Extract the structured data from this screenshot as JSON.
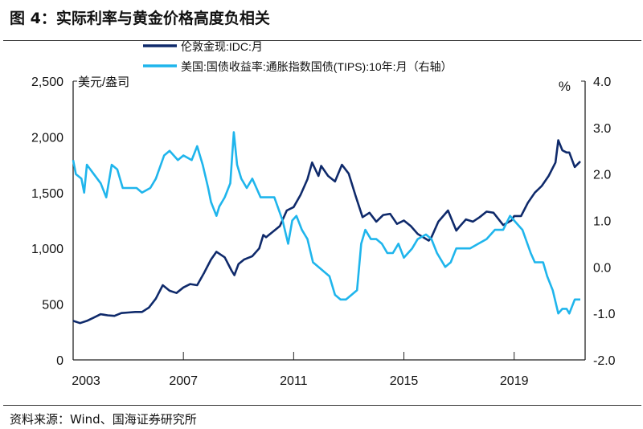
{
  "title": "图 4：实际利率与黄金价格高度负相关",
  "source": "资料来源：Wind、国海证券研究所",
  "chart_data": {
    "type": "line",
    "title": "图 4：实际利率与黄金价格高度负相关",
    "left_axis": {
      "label": "美元/盎司",
      "range": [
        0,
        2500
      ],
      "ticks": [
        "0",
        "500",
        "1,000",
        "1,500",
        "2,000",
        "2,500"
      ],
      "tick_values": [
        0,
        500,
        1000,
        1500,
        2000,
        2500
      ]
    },
    "right_axis": {
      "label": "%",
      "range": [
        -2.0,
        4.0
      ],
      "ticks": [
        "-2.0",
        "-1.0",
        "0.0",
        "1.0",
        "2.0",
        "3.0",
        "4.0"
      ],
      "tick_values": [
        -2,
        -1,
        0,
        1,
        2,
        3,
        4
      ]
    },
    "x_axis": {
      "range": [
        2003,
        2021.6
      ],
      "ticks": [
        "2003",
        "2007",
        "2011",
        "2015",
        "2019"
      ],
      "tick_values": [
        2003,
        2007,
        2011,
        2015,
        2019
      ]
    },
    "grid": false,
    "legend_position": "top-center",
    "series": [
      {
        "name": "伦敦金现:IDC:月",
        "axis": "left",
        "color": "#0f2a6b",
        "points": [
          [
            2003.0,
            350
          ],
          [
            2003.25,
            330
          ],
          [
            2003.5,
            350
          ],
          [
            2003.75,
            380
          ],
          [
            2004.0,
            410
          ],
          [
            2004.25,
            400
          ],
          [
            2004.5,
            395
          ],
          [
            2004.75,
            420
          ],
          [
            2005.0,
            425
          ],
          [
            2005.25,
            430
          ],
          [
            2005.5,
            430
          ],
          [
            2005.75,
            470
          ],
          [
            2006.0,
            550
          ],
          [
            2006.25,
            670
          ],
          [
            2006.5,
            620
          ],
          [
            2006.75,
            600
          ],
          [
            2007.0,
            650
          ],
          [
            2007.25,
            680
          ],
          [
            2007.5,
            670
          ],
          [
            2007.75,
            780
          ],
          [
            2008.0,
            900
          ],
          [
            2008.2,
            970
          ],
          [
            2008.5,
            920
          ],
          [
            2008.75,
            800
          ],
          [
            2008.85,
            760
          ],
          [
            2009.0,
            860
          ],
          [
            2009.2,
            900
          ],
          [
            2009.5,
            930
          ],
          [
            2009.75,
            1000
          ],
          [
            2009.9,
            1120
          ],
          [
            2010.0,
            1100
          ],
          [
            2010.25,
            1150
          ],
          [
            2010.5,
            1200
          ],
          [
            2010.75,
            1340
          ],
          [
            2011.0,
            1370
          ],
          [
            2011.25,
            1480
          ],
          [
            2011.5,
            1620
          ],
          [
            2011.67,
            1770
          ],
          [
            2011.9,
            1650
          ],
          [
            2012.0,
            1740
          ],
          [
            2012.25,
            1650
          ],
          [
            2012.5,
            1600
          ],
          [
            2012.75,
            1750
          ],
          [
            2013.0,
            1670
          ],
          [
            2013.25,
            1470
          ],
          [
            2013.5,
            1280
          ],
          [
            2013.75,
            1320
          ],
          [
            2014.0,
            1240
          ],
          [
            2014.25,
            1300
          ],
          [
            2014.5,
            1310
          ],
          [
            2014.75,
            1220
          ],
          [
            2015.0,
            1250
          ],
          [
            2015.25,
            1200
          ],
          [
            2015.5,
            1130
          ],
          [
            2015.9,
            1070
          ],
          [
            2016.0,
            1100
          ],
          [
            2016.25,
            1240
          ],
          [
            2016.6,
            1340
          ],
          [
            2016.9,
            1160
          ],
          [
            2017.0,
            1190
          ],
          [
            2017.25,
            1260
          ],
          [
            2017.5,
            1240
          ],
          [
            2017.75,
            1280
          ],
          [
            2018.0,
            1330
          ],
          [
            2018.25,
            1320
          ],
          [
            2018.6,
            1210
          ],
          [
            2018.9,
            1250
          ],
          [
            2019.0,
            1290
          ],
          [
            2019.25,
            1290
          ],
          [
            2019.5,
            1410
          ],
          [
            2019.75,
            1500
          ],
          [
            2020.0,
            1560
          ],
          [
            2020.25,
            1650
          ],
          [
            2020.5,
            1770
          ],
          [
            2020.6,
            1970
          ],
          [
            2020.75,
            1880
          ],
          [
            2020.9,
            1860
          ],
          [
            2021.0,
            1860
          ],
          [
            2021.2,
            1730
          ],
          [
            2021.4,
            1780
          ]
        ]
      },
      {
        "name": "美国:国债收益率:通胀指数国债(TIPS):10年:月（右轴）",
        "axis": "right",
        "color": "#1fb5ec",
        "points": [
          [
            2003.0,
            2.3
          ],
          [
            2003.1,
            2.0
          ],
          [
            2003.3,
            1.9
          ],
          [
            2003.4,
            1.6
          ],
          [
            2003.5,
            2.2
          ],
          [
            2003.75,
            2.0
          ],
          [
            2004.0,
            1.8
          ],
          [
            2004.2,
            1.5
          ],
          [
            2004.4,
            2.2
          ],
          [
            2004.6,
            2.1
          ],
          [
            2004.8,
            1.7
          ],
          [
            2005.0,
            1.7
          ],
          [
            2005.3,
            1.7
          ],
          [
            2005.5,
            1.6
          ],
          [
            2005.8,
            1.7
          ],
          [
            2006.0,
            1.9
          ],
          [
            2006.3,
            2.4
          ],
          [
            2006.5,
            2.5
          ],
          [
            2006.8,
            2.3
          ],
          [
            2007.0,
            2.4
          ],
          [
            2007.3,
            2.3
          ],
          [
            2007.5,
            2.6
          ],
          [
            2007.7,
            2.2
          ],
          [
            2007.9,
            1.7
          ],
          [
            2008.0,
            1.4
          ],
          [
            2008.2,
            1.1
          ],
          [
            2008.3,
            1.3
          ],
          [
            2008.5,
            1.5
          ],
          [
            2008.7,
            1.8
          ],
          [
            2008.83,
            2.9
          ],
          [
            2008.95,
            2.2
          ],
          [
            2009.1,
            1.9
          ],
          [
            2009.3,
            1.7
          ],
          [
            2009.5,
            1.9
          ],
          [
            2009.8,
            1.5
          ],
          [
            2010.0,
            1.5
          ],
          [
            2010.3,
            1.5
          ],
          [
            2010.6,
            1.0
          ],
          [
            2010.8,
            0.5
          ],
          [
            2010.95,
            1.0
          ],
          [
            2011.1,
            1.1
          ],
          [
            2011.3,
            0.8
          ],
          [
            2011.5,
            0.6
          ],
          [
            2011.7,
            0.1
          ],
          [
            2011.9,
            0.0
          ],
          [
            2012.1,
            -0.1
          ],
          [
            2012.3,
            -0.2
          ],
          [
            2012.5,
            -0.6
          ],
          [
            2012.7,
            -0.7
          ],
          [
            2012.9,
            -0.7
          ],
          [
            2013.1,
            -0.6
          ],
          [
            2013.3,
            -0.5
          ],
          [
            2013.45,
            0.5
          ],
          [
            2013.6,
            0.8
          ],
          [
            2013.8,
            0.6
          ],
          [
            2014.0,
            0.6
          ],
          [
            2014.2,
            0.5
          ],
          [
            2014.4,
            0.3
          ],
          [
            2014.6,
            0.3
          ],
          [
            2014.8,
            0.5
          ],
          [
            2015.0,
            0.2
          ],
          [
            2015.3,
            0.4
          ],
          [
            2015.5,
            0.6
          ],
          [
            2015.8,
            0.7
          ],
          [
            2016.0,
            0.6
          ],
          [
            2016.2,
            0.3
          ],
          [
            2016.5,
            0.0
          ],
          [
            2016.7,
            0.1
          ],
          [
            2016.9,
            0.4
          ],
          [
            2017.0,
            0.4
          ],
          [
            2017.4,
            0.4
          ],
          [
            2017.7,
            0.5
          ],
          [
            2018.0,
            0.6
          ],
          [
            2018.3,
            0.8
          ],
          [
            2018.6,
            0.8
          ],
          [
            2018.85,
            1.1
          ],
          [
            2019.0,
            1.0
          ],
          [
            2019.3,
            0.8
          ],
          [
            2019.6,
            0.3
          ],
          [
            2019.75,
            0.1
          ],
          [
            2019.9,
            0.1
          ],
          [
            2020.05,
            0.1
          ],
          [
            2020.2,
            -0.2
          ],
          [
            2020.4,
            -0.5
          ],
          [
            2020.6,
            -1.0
          ],
          [
            2020.75,
            -0.9
          ],
          [
            2020.9,
            -0.9
          ],
          [
            2021.0,
            -1.0
          ],
          [
            2021.2,
            -0.7
          ],
          [
            2021.4,
            -0.7
          ]
        ]
      }
    ]
  }
}
